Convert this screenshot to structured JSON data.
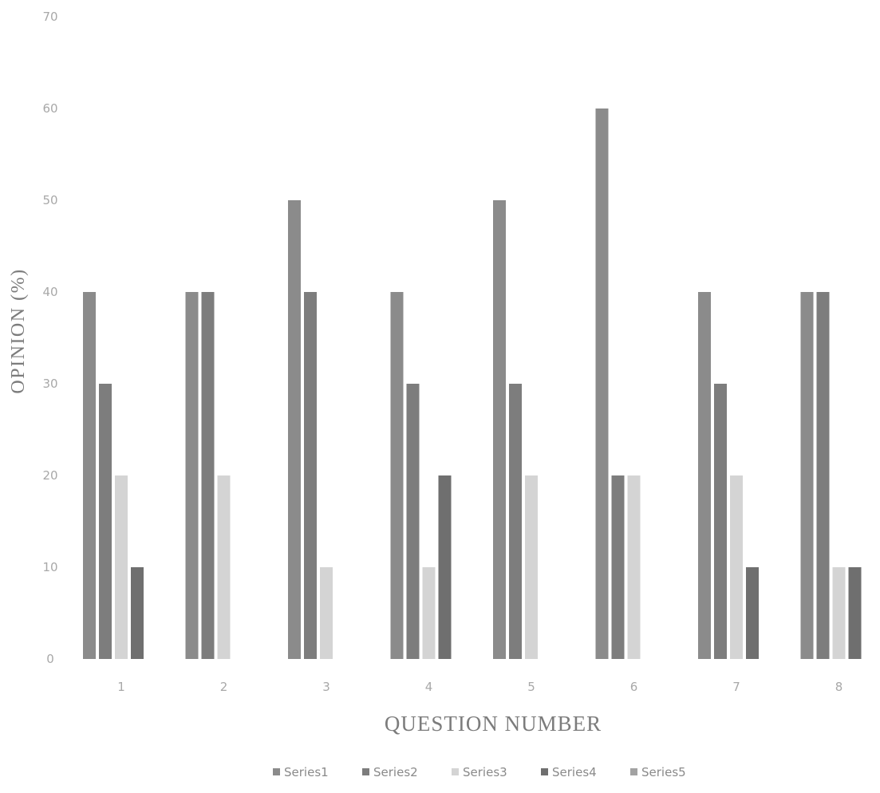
{
  "chart_data": {
    "type": "bar",
    "title": "",
    "xlabel": "QUESTION NUMBER",
    "ylabel": "OPINION (%)",
    "categories": [
      "1",
      "2",
      "3",
      "4",
      "5",
      "6",
      "7",
      "8"
    ],
    "ylim": [
      0,
      70
    ],
    "yticks": [
      "0",
      "10",
      "20",
      "30",
      "40",
      "50",
      "60",
      "70"
    ],
    "grid": false,
    "legend_position": "bottom",
    "series": [
      {
        "name": "Series1",
        "color": "#8b8b8b",
        "values": [
          40,
          40,
          50,
          40,
          50,
          60,
          40,
          40
        ]
      },
      {
        "name": "Series2",
        "color": "#7d7d7d",
        "values": [
          30,
          40,
          40,
          30,
          30,
          20,
          30,
          40
        ]
      },
      {
        "name": "Series3",
        "color": "#d4d4d4",
        "values": [
          20,
          20,
          10,
          10,
          20,
          20,
          20,
          10
        ]
      },
      {
        "name": "Series4",
        "color": "#6f6f6f",
        "values": [
          10,
          0,
          0,
          20,
          0,
          0,
          10,
          10
        ]
      },
      {
        "name": "Series5",
        "color": "#a2a2a2",
        "values": [
          0,
          0,
          0,
          0,
          0,
          0,
          0,
          0
        ]
      }
    ]
  }
}
